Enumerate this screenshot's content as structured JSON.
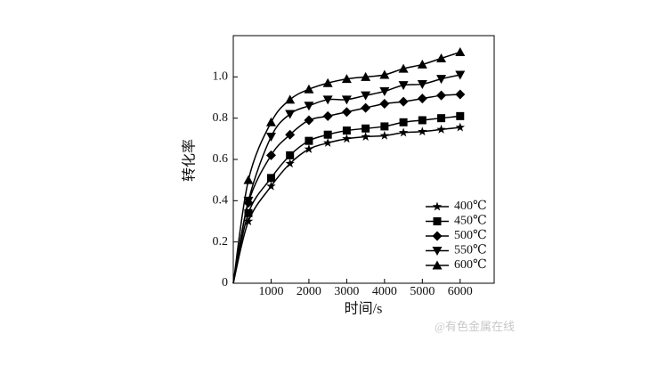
{
  "chart_data": {
    "type": "line",
    "x_label": "时间/s",
    "y_label": "转化率",
    "x": [
      0,
      400,
      1000,
      1500,
      2000,
      2500,
      3000,
      3500,
      4000,
      4500,
      5000,
      5500,
      6000
    ],
    "series": [
      {
        "name": "400℃",
        "color": "#000000",
        "marker": "star",
        "values": [
          0,
          0.3,
          0.47,
          0.58,
          0.65,
          0.68,
          0.7,
          0.71,
          0.715,
          0.73,
          0.735,
          0.745,
          0.755
        ]
      },
      {
        "name": "450℃",
        "color": "#000000",
        "marker": "square",
        "values": [
          0,
          0.34,
          0.51,
          0.62,
          0.69,
          0.72,
          0.74,
          0.75,
          0.76,
          0.78,
          0.79,
          0.8,
          0.81
        ]
      },
      {
        "name": "500℃",
        "color": "#000000",
        "marker": "diamond",
        "values": [
          0,
          0.39,
          0.62,
          0.72,
          0.79,
          0.81,
          0.83,
          0.85,
          0.87,
          0.88,
          0.895,
          0.91,
          0.915
        ]
      },
      {
        "name": "550℃",
        "color": "#000000",
        "marker": "triangle-down",
        "values": [
          0,
          0.4,
          0.71,
          0.82,
          0.86,
          0.89,
          0.89,
          0.91,
          0.93,
          0.96,
          0.965,
          0.99,
          1.01
        ]
      },
      {
        "name": "600℃",
        "color": "#000000",
        "marker": "triangle-up",
        "values": [
          0,
          0.5,
          0.78,
          0.89,
          0.94,
          0.97,
          0.99,
          1.0,
          1.01,
          1.04,
          1.06,
          1.09,
          1.12
        ]
      }
    ],
    "xlim": [
      0,
      6900
    ],
    "xticks": [
      1000,
      2000,
      3000,
      4000,
      5000,
      6000
    ],
    "ylim": [
      0,
      1.2
    ],
    "yticks": [
      0,
      0.2,
      0.4,
      0.6,
      0.8,
      {
        "value": 1,
        "label": "1.0"
      }
    ],
    "legend": "lower right",
    "annotations": [
      "@有色金属在线"
    ]
  }
}
